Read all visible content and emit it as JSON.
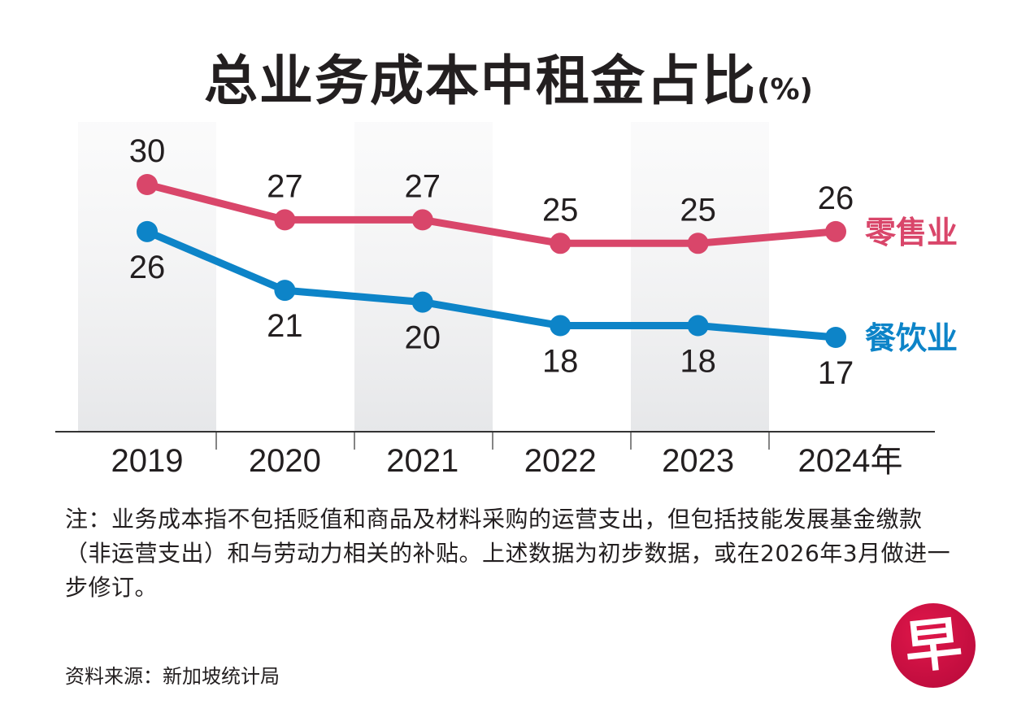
{
  "header": {
    "title": "总业务成本中租金占比",
    "unit": "(%)"
  },
  "chart_data": {
    "type": "line",
    "title": "总业务成本中租金占比 (%)",
    "xlabel": "",
    "ylabel": "",
    "categories": [
      "2019",
      "2020",
      "2021",
      "2022",
      "2023",
      "2024年"
    ],
    "series": [
      {
        "name": "零售业",
        "color": "#d9466a",
        "values": [
          30,
          27,
          27,
          25,
          25,
          26
        ]
      },
      {
        "name": "餐饮业",
        "color": "#0d84c8",
        "values": [
          26,
          21,
          20,
          18,
          18,
          17
        ]
      }
    ],
    "ylim": [
      10,
      32
    ],
    "grid": false,
    "alternating_column_shading": true,
    "legend": "right, inline at line ends",
    "data_labels": {
      "retail": "above",
      "fnb": "below"
    }
  },
  "footer": {
    "note": "注：业务成本指不包括贬值和商品及材料采购的运营支出，但包括技能发展基金缴款（非运营支出）和与劳动力相关的补贴。上述数据为初步数据，或在2026年3月做进一步修订。",
    "source": "资料来源：新加坡统计局",
    "logo_char": "早"
  }
}
